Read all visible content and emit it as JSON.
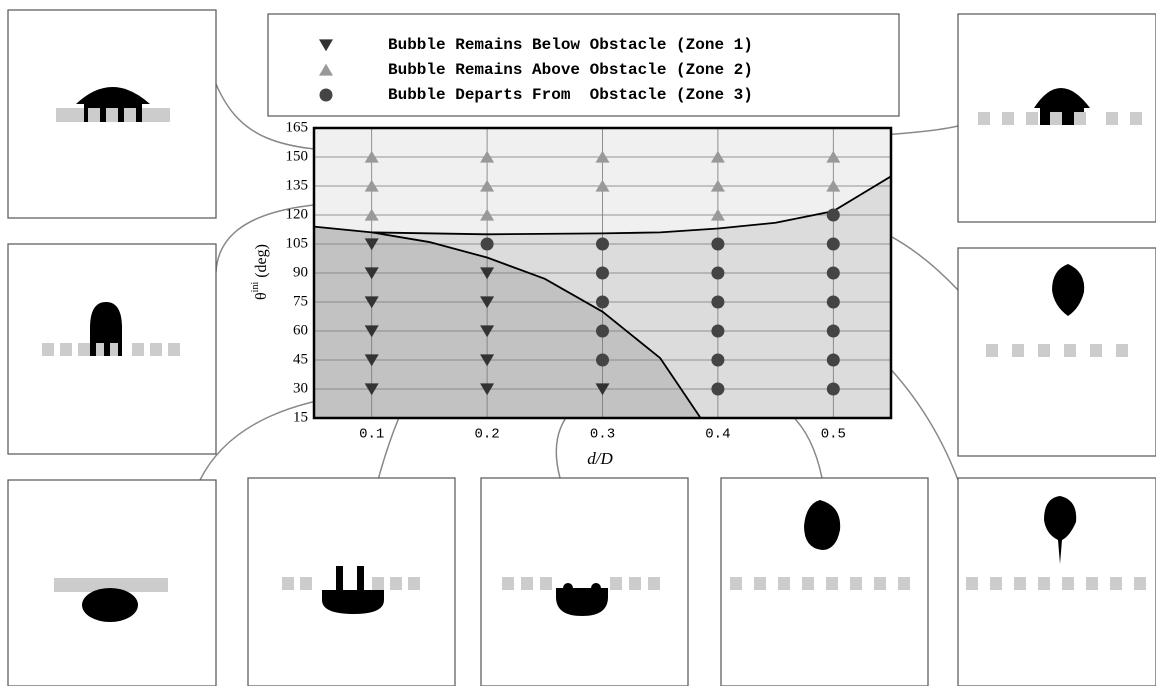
{
  "chart_data": {
    "type": "scatter",
    "xlabel": "d/D",
    "ylabel": {
      "symbol": "θ",
      "superscript": "ini",
      "unit": "(deg)"
    },
    "xlim": [
      0.05,
      0.55
    ],
    "ylim": [
      15,
      165
    ],
    "xticks": [
      0.1,
      0.2,
      0.3,
      0.4,
      0.5
    ],
    "yticks": [
      15,
      30,
      45,
      60,
      75,
      90,
      105,
      120,
      135,
      150,
      165
    ],
    "grid": true,
    "series": [
      {
        "name": "Bubble Remains Below Obstacle (Zone 1)",
        "marker": "triangle-down",
        "color": "#333333",
        "x": [
          0.1,
          0.1,
          0.1,
          0.1,
          0.1,
          0.1,
          0.2,
          0.2,
          0.2,
          0.2,
          0.2,
          0.3
        ],
        "values": [
          30,
          45,
          60,
          75,
          90,
          105,
          30,
          45,
          60,
          75,
          90,
          30
        ]
      },
      {
        "name": "Bubble Remains Above Obstacle (Zone 2)",
        "marker": "triangle-up",
        "color": "#999999",
        "x": [
          0.1,
          0.1,
          0.1,
          0.2,
          0.2,
          0.2,
          0.3,
          0.3,
          0.4,
          0.4,
          0.4,
          0.5,
          0.5
        ],
        "values": [
          120,
          135,
          150,
          120,
          135,
          150,
          135,
          150,
          120,
          135,
          150,
          135,
          150
        ]
      },
      {
        "name": "Bubble Departs From  Obstacle (Zone 3)",
        "marker": "circle",
        "color": "#444444",
        "x": [
          0.2,
          0.3,
          0.3,
          0.3,
          0.3,
          0.3,
          0.4,
          0.4,
          0.4,
          0.4,
          0.4,
          0.4,
          0.5,
          0.5,
          0.5,
          0.5,
          0.5,
          0.5,
          0.5
        ],
        "values": [
          105,
          105,
          90,
          75,
          60,
          45,
          105,
          90,
          75,
          60,
          45,
          30,
          120,
          105,
          90,
          75,
          60,
          45,
          30
        ]
      }
    ],
    "boundaries": [
      {
        "x": [
          0.1,
          0.2,
          0.3,
          0.35,
          0.4,
          0.45,
          0.5,
          0.55
        ],
        "values": [
          111,
          110,
          110.5,
          111,
          113,
          116,
          122,
          140
        ]
      },
      {
        "x": [
          0.05,
          0.1,
          0.15,
          0.2,
          0.25,
          0.3,
          0.35,
          0.385
        ],
        "values": [
          114,
          111,
          106,
          98,
          87,
          70,
          46,
          15
        ]
      }
    ]
  }
}
